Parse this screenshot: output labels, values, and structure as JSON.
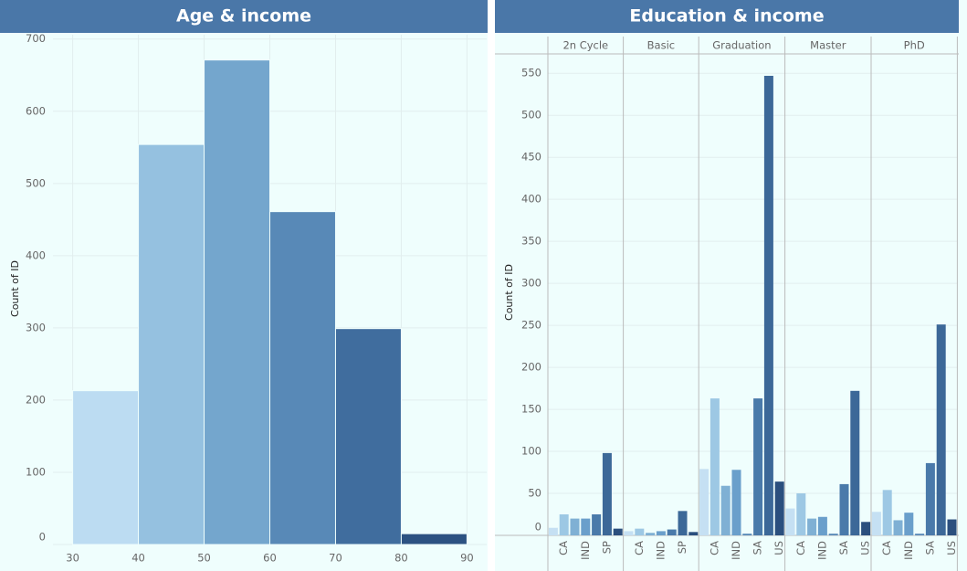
{
  "chart_data": [
    {
      "type": "histogram",
      "title": "Age & income",
      "y_label": "Count of ID",
      "bins": [
        30,
        40,
        50,
        60,
        70,
        80,
        90
      ],
      "values": [
        213,
        554,
        671,
        461,
        299,
        15
      ],
      "colors": [
        "#bcdcf2",
        "#95c1e0",
        "#74a6cd",
        "#5889b7",
        "#406d9e",
        "#2c5282"
      ],
      "xlim": [
        27,
        93
      ],
      "ylim": [
        0,
        706
      ],
      "xticks": [
        30,
        40,
        50,
        60,
        70,
        80,
        90
      ],
      "yticks": [
        0,
        100,
        200,
        300,
        400,
        500,
        600,
        700
      ],
      "grid": true
    },
    {
      "type": "faceted_bar",
      "title": "Education & income",
      "y_label": "Count of ID",
      "facets": [
        {
          "name": "2n Cycle",
          "categories": [
            null,
            "CA",
            null,
            "IND",
            null,
            "SP",
            null
          ],
          "values": [
            9,
            25,
            20,
            20,
            25,
            98,
            8
          ],
          "colors": [
            "#c5e0f3",
            "#9dc8e4",
            "#7fb0d4",
            "#6a9fcb",
            "#4a7aaa",
            "#3c6898",
            "#2b4f7e"
          ]
        },
        {
          "name": "Basic",
          "categories": [
            null,
            "CA",
            null,
            "IND",
            null,
            "SP",
            null
          ],
          "values": [
            5,
            8,
            3,
            5,
            7,
            29,
            4
          ],
          "colors": [
            "#c5e0f3",
            "#9dc8e4",
            "#7fb0d4",
            "#6a9fcb",
            "#4a7aaa",
            "#3c6898",
            "#2b4f7e"
          ]
        },
        {
          "name": "Graduation",
          "categories": [
            null,
            "CA",
            null,
            "IND",
            null,
            "SA",
            null,
            "US"
          ],
          "values": [
            79,
            163,
            59,
            78,
            2,
            163,
            547,
            64
          ],
          "colors": [
            "#c5e0f3",
            "#9dc8e4",
            "#7fb0d4",
            "#6a9fcb",
            "#5a8ab8",
            "#4a7aaa",
            "#3c6898",
            "#2b4f7e"
          ]
        },
        {
          "name": "Master",
          "categories": [
            null,
            "CA",
            null,
            "IND",
            null,
            "SA",
            null,
            "US"
          ],
          "values": [
            32,
            50,
            20,
            22,
            2,
            61,
            172,
            16
          ],
          "colors": [
            "#c5e0f3",
            "#9dc8e4",
            "#7fb0d4",
            "#6a9fcb",
            "#5a8ab8",
            "#4a7aaa",
            "#3c6898",
            "#2b4f7e"
          ]
        },
        {
          "name": "PhD",
          "categories": [
            null,
            "CA",
            null,
            "IND",
            null,
            "SA",
            null,
            "US"
          ],
          "values": [
            28,
            54,
            18,
            27,
            2,
            86,
            251,
            19
          ],
          "colors": [
            "#c5e0f3",
            "#9dc8e4",
            "#7fb0d4",
            "#6a9fcb",
            "#5a8ab8",
            "#4a7aaa",
            "#3c6898",
            "#2b4f7e"
          ]
        }
      ],
      "ylim": [
        0,
        572
      ],
      "yticks": [
        0,
        50,
        100,
        150,
        200,
        250,
        300,
        350,
        400,
        450,
        500,
        550
      ],
      "grid": true
    }
  ]
}
